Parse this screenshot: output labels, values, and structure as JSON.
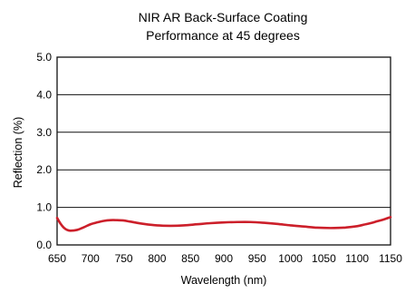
{
  "chart_data": {
    "type": "line",
    "title": [
      "NIR AR Back-Surface Coating",
      "Performance at 45 degrees"
    ],
    "xlabel": "Wavelength (nm)",
    "ylabel": "Reflection (%)",
    "xlim": [
      650,
      1150
    ],
    "ylim": [
      0,
      5
    ],
    "xticks": [
      650,
      700,
      750,
      800,
      850,
      900,
      950,
      1000,
      1050,
      1100,
      1150
    ],
    "xtick_labels": [
      "650",
      "700",
      "750",
      "800",
      "850",
      "900",
      "950",
      "1000",
      "1050",
      "1100",
      "1150"
    ],
    "yticks": [
      0,
      1,
      2,
      3,
      4,
      5
    ],
    "ytick_labels": [
      "0.0",
      "1.0",
      "2.0",
      "3.0",
      "4.0",
      "5.0"
    ],
    "grid": "horizontal",
    "series": [
      {
        "color": "#cc1f2a",
        "x": [
          650,
          655,
          660,
          665,
          670,
          680,
          690,
          700,
          710,
          720,
          730,
          740,
          750,
          760,
          780,
          800,
          820,
          840,
          860,
          880,
          900,
          920,
          940,
          960,
          980,
          1000,
          1020,
          1040,
          1060,
          1080,
          1100,
          1110,
          1120,
          1130,
          1140,
          1150
        ],
        "y": [
          0.72,
          0.57,
          0.46,
          0.4,
          0.38,
          0.4,
          0.47,
          0.55,
          0.6,
          0.64,
          0.66,
          0.66,
          0.65,
          0.62,
          0.56,
          0.52,
          0.51,
          0.52,
          0.55,
          0.58,
          0.6,
          0.61,
          0.61,
          0.59,
          0.56,
          0.52,
          0.49,
          0.46,
          0.45,
          0.46,
          0.5,
          0.54,
          0.58,
          0.63,
          0.68,
          0.74
        ]
      }
    ]
  }
}
